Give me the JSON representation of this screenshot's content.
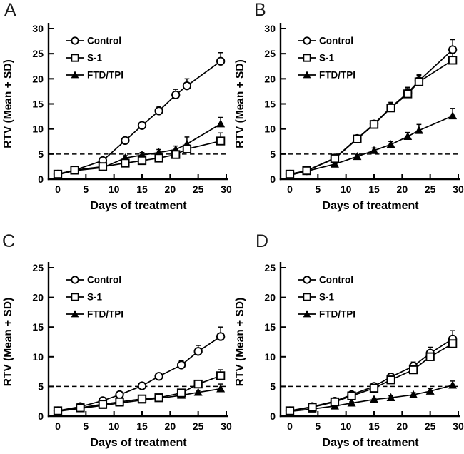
{
  "figure": {
    "background_color": "#ffffff",
    "ink_color": "#000000",
    "xlabel": "Days of treatment",
    "ylabel": "RTV (Mean + SD)",
    "threshold_value": 5,
    "legend_labels": [
      "Control",
      "S-1",
      "FTD/TPI"
    ]
  },
  "chart_data": [
    {
      "panel": "A",
      "type": "line",
      "xlabel": "Days of treatment",
      "ylabel": "RTV (Mean + SD)",
      "xlim": [
        0,
        30
      ],
      "ylim": [
        0,
        30
      ],
      "xticks": [
        0,
        5,
        10,
        15,
        20,
        25,
        30
      ],
      "yticks": [
        0,
        5,
        10,
        15,
        20,
        25,
        30
      ],
      "threshold_y": 5,
      "grid": false,
      "legend_position": "top-left-inside",
      "x": [
        0,
        3,
        8,
        12,
        15,
        18,
        21,
        23,
        29
      ],
      "series": [
        {
          "name": "Control",
          "marker": "circle",
          "fill": "open",
          "values": [
            1.0,
            1.8,
            3.7,
            7.7,
            10.7,
            13.6,
            16.8,
            18.6,
            23.5
          ],
          "sd": [
            0.2,
            0.2,
            0.4,
            0.5,
            0.6,
            0.9,
            1.1,
            1.4,
            1.7
          ]
        },
        {
          "name": "S-1",
          "marker": "square",
          "fill": "open",
          "values": [
            1.0,
            1.8,
            2.5,
            3.2,
            3.7,
            4.2,
            4.9,
            6.0,
            7.6
          ],
          "sd": [
            0.1,
            0.15,
            0.2,
            0.3,
            0.3,
            0.4,
            0.5,
            0.7,
            1.6
          ]
        },
        {
          "name": "FTD/TPI",
          "marker": "triangle",
          "fill": "solid",
          "values": [
            0.9,
            1.7,
            2.3,
            4.2,
            4.8,
            5.3,
            5.9,
            7.0,
            11.0
          ],
          "sd": [
            0.1,
            0.15,
            0.2,
            0.5,
            0.5,
            0.6,
            0.7,
            1.4,
            1.3
          ]
        }
      ]
    },
    {
      "panel": "B",
      "type": "line",
      "xlabel": "Days of treatment",
      "ylabel": "RTV (Mean + SD)",
      "xlim": [
        0,
        30
      ],
      "ylim": [
        0,
        30
      ],
      "xticks": [
        0,
        5,
        10,
        15,
        20,
        25,
        30
      ],
      "yticks": [
        0,
        5,
        10,
        15,
        20,
        25,
        30
      ],
      "threshold_y": 5,
      "grid": false,
      "legend_position": "top-left-inside",
      "x": [
        0,
        3,
        8,
        12,
        15,
        18,
        21,
        23,
        29
      ],
      "series": [
        {
          "name": "Control",
          "marker": "circle",
          "fill": "open",
          "values": [
            1.0,
            1.7,
            4.2,
            8.1,
            11.0,
            14.3,
            17.2,
            19.6,
            25.8
          ],
          "sd": [
            0.2,
            0.2,
            0.3,
            0.5,
            0.7,
            1.0,
            1.1,
            1.3,
            2.0
          ]
        },
        {
          "name": "S-1",
          "marker": "square",
          "fill": "open",
          "values": [
            1.0,
            1.7,
            4.1,
            8.0,
            10.9,
            14.2,
            17.0,
            19.4,
            23.7
          ],
          "sd": [
            0.15,
            0.2,
            0.3,
            0.5,
            0.7,
            1.0,
            1.2,
            1.3,
            1.4
          ]
        },
        {
          "name": "FTD/TPI",
          "marker": "triangle",
          "fill": "solid",
          "values": [
            0.8,
            1.6,
            3.0,
            4.5,
            5.7,
            6.9,
            8.5,
            9.7,
            12.6
          ],
          "sd": [
            0.1,
            0.15,
            0.25,
            0.4,
            0.5,
            0.6,
            0.8,
            1.2,
            1.5
          ]
        }
      ]
    },
    {
      "panel": "C",
      "type": "line",
      "xlabel": "Days of treatment",
      "ylabel": "RTV (Mean + SD)",
      "xlim": [
        0,
        30
      ],
      "ylim": [
        0,
        25
      ],
      "xticks": [
        0,
        5,
        10,
        15,
        20,
        25,
        30
      ],
      "yticks": [
        0,
        5,
        10,
        15,
        20,
        25
      ],
      "threshold_y": 5,
      "grid": false,
      "legend_position": "top-left-inside",
      "x": [
        0,
        4,
        8,
        11,
        15,
        18,
        22,
        25,
        29
      ],
      "series": [
        {
          "name": "Control",
          "marker": "circle",
          "fill": "open",
          "values": [
            0.9,
            1.6,
            2.6,
            3.6,
            5.1,
            6.7,
            8.6,
            10.9,
            13.4
          ],
          "sd": [
            0.1,
            0.15,
            0.25,
            0.35,
            0.4,
            0.5,
            0.7,
            1.0,
            1.6
          ]
        },
        {
          "name": "S-1",
          "marker": "square",
          "fill": "open",
          "values": [
            0.9,
            1.4,
            2.0,
            2.4,
            2.9,
            3.1,
            3.9,
            5.4,
            6.8
          ],
          "sd": [
            0.1,
            0.1,
            0.15,
            0.2,
            0.25,
            0.3,
            0.35,
            0.5,
            1.0
          ]
        },
        {
          "name": "FTD/TPI",
          "marker": "triangle",
          "fill": "solid",
          "values": [
            0.8,
            1.3,
            1.8,
            2.2,
            2.7,
            3.0,
            3.5,
            4.0,
            4.6
          ],
          "sd": [
            0.1,
            0.1,
            0.15,
            0.2,
            0.2,
            0.25,
            0.3,
            0.35,
            0.8
          ]
        }
      ]
    },
    {
      "panel": "D",
      "type": "line",
      "xlabel": "Days of treatment",
      "ylabel": "RTV (Mean + SD)",
      "xlim": [
        0,
        30
      ],
      "ylim": [
        0,
        25
      ],
      "xticks": [
        0,
        5,
        10,
        15,
        20,
        25,
        30
      ],
      "yticks": [
        0,
        5,
        10,
        15,
        20,
        25
      ],
      "threshold_y": 5,
      "grid": false,
      "legend_position": "top-left-inside",
      "x": [
        0,
        4,
        8,
        11,
        15,
        18,
        22,
        25,
        29
      ],
      "series": [
        {
          "name": "Control",
          "marker": "circle",
          "fill": "open",
          "values": [
            0.9,
            1.6,
            2.5,
            3.6,
            5.0,
            6.6,
            8.4,
            10.6,
            13.0
          ],
          "sd": [
            0.1,
            0.15,
            0.2,
            0.3,
            0.4,
            0.5,
            0.7,
            1.0,
            1.4
          ]
        },
        {
          "name": "S-1",
          "marker": "square",
          "fill": "open",
          "values": [
            0.9,
            1.5,
            2.4,
            3.4,
            4.7,
            6.1,
            7.8,
            10.0,
            12.2
          ],
          "sd": [
            0.1,
            0.15,
            0.2,
            0.3,
            0.4,
            0.5,
            0.8,
            1.0,
            1.0
          ]
        },
        {
          "name": "FTD/TPI",
          "marker": "triangle",
          "fill": "solid",
          "values": [
            0.8,
            1.2,
            1.7,
            2.2,
            2.8,
            3.1,
            3.6,
            4.2,
            5.2
          ],
          "sd": [
            0.08,
            0.1,
            0.15,
            0.2,
            0.25,
            0.3,
            0.35,
            0.45,
            0.7
          ]
        }
      ]
    }
  ]
}
